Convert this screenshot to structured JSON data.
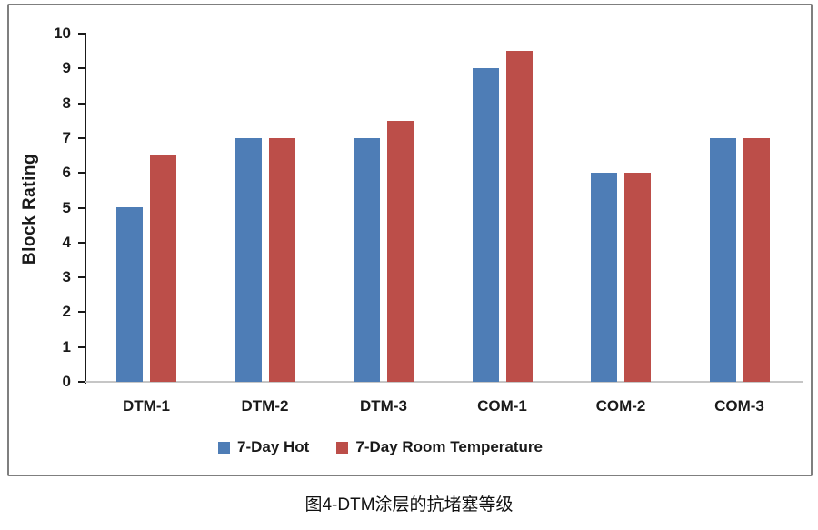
{
  "caption": "图4-DTM涂层的抗堵塞等级",
  "chart_data": {
    "type": "bar",
    "title": "",
    "xlabel": "",
    "ylabel": "Block Rating",
    "categories": [
      "DTM-1",
      "DTM-2",
      "DTM-3",
      "COM-1",
      "COM-2",
      "COM-3"
    ],
    "series": [
      {
        "name": "7-Day Hot",
        "color": "#4E7DB6",
        "values": [
          5,
          7,
          7,
          9,
          6,
          7
        ]
      },
      {
        "name": "7-Day Room Temperature",
        "color": "#BC4E49",
        "values": [
          6.5,
          7,
          7.5,
          9.5,
          6,
          7
        ]
      }
    ],
    "ylim": [
      0,
      10
    ],
    "yticks": [
      0,
      1,
      2,
      3,
      4,
      5,
      6,
      7,
      8,
      9,
      10
    ],
    "grid": false,
    "legend_position": "bottom"
  },
  "colors": {
    "frame_border": "#7f7f7f",
    "y_axis": "#1a1a1a",
    "x_axis": "#c6c6c6",
    "text": "#1a1a1a"
  }
}
